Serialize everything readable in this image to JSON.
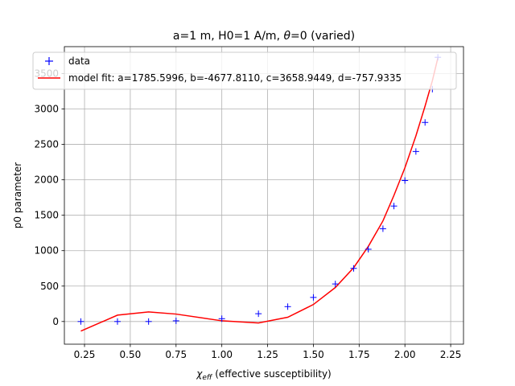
{
  "chart_data": {
    "type": "line",
    "title_parts": [
      "a=1 m, H0=1 A/m, ",
      "θ",
      "=0 (varied)"
    ],
    "xlabel_symbol": "χ",
    "xlabel_sub": "eff",
    "xlabel_rest": " (effective susceptibility)",
    "ylabel": "p0 parameter",
    "xlim": [
      0.14,
      2.32
    ],
    "ylim": [
      -320,
      3880
    ],
    "grid": true,
    "legend_position": "top-left",
    "xticks": [
      0.25,
      0.5,
      0.75,
      1.0,
      1.25,
      1.5,
      1.75,
      2.0,
      2.25
    ],
    "xtick_labels": [
      "0.25",
      "0.50",
      "0.75",
      "1.00",
      "1.25",
      "1.50",
      "1.75",
      "2.00",
      "2.25"
    ],
    "yticks": [
      0,
      500,
      1000,
      1500,
      2000,
      2500,
      3000,
      3500
    ],
    "ytick_labels": [
      "0",
      "500",
      "1000",
      "1500",
      "2000",
      "2500",
      "3000",
      "3500"
    ],
    "series": [
      {
        "name": "data",
        "kind": "scatter",
        "marker": "+",
        "color": "#0000ff",
        "x": [
          0.23,
          0.43,
          0.6,
          0.75,
          1.0,
          1.2,
          1.36,
          1.5,
          1.62,
          1.72,
          1.8,
          1.88,
          1.94,
          2.0,
          2.06,
          2.11,
          2.15,
          2.18
        ],
        "y": [
          0,
          0,
          0,
          10,
          40,
          110,
          210,
          340,
          530,
          750,
          1020,
          1310,
          1630,
          1990,
          2400,
          2810,
          3280,
          3730
        ]
      },
      {
        "name": "model fit: a=1785.5996, b=-4677.8110, c=3658.9449, d=-757.9335",
        "kind": "line",
        "color": "#ff0000",
        "x": [
          0.23,
          0.43,
          0.6,
          0.75,
          1.0,
          1.2,
          1.36,
          1.5,
          1.62,
          1.72,
          1.8,
          1.88,
          1.94,
          2.0,
          2.06,
          2.11,
          2.15,
          2.18
        ],
        "y": [
          -135,
          90,
          135,
          105,
          10,
          -20,
          60,
          240,
          480,
          760,
          1060,
          1420,
          1780,
          2170,
          2620,
          3040,
          3400,
          3720
        ]
      }
    ]
  }
}
